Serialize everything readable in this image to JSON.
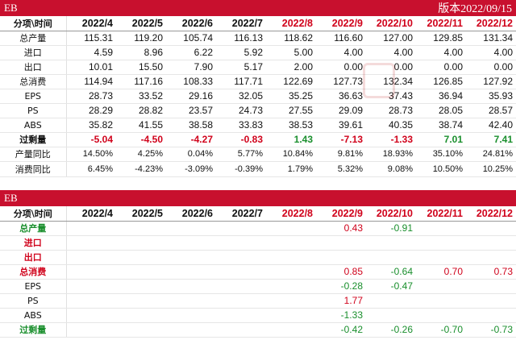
{
  "top_banner": {
    "product": "EB",
    "version": "版本2022/09/15"
  },
  "bottom_banner": {
    "product": "EB"
  },
  "header": {
    "label": "分项\\时间",
    "months": [
      "2022/4",
      "2022/5",
      "2022/6",
      "2022/7",
      "2022/8",
      "2022/9",
      "2022/10",
      "2022/11",
      "2022/12"
    ]
  },
  "top_rows": [
    {
      "label": "总产量",
      "values": [
        "115.31",
        "119.20",
        "105.74",
        "116.13",
        "118.62",
        "116.60",
        "127.00",
        "129.85",
        "131.34"
      ]
    },
    {
      "label": "进口",
      "values": [
        "4.59",
        "8.96",
        "6.22",
        "5.92",
        "5.00",
        "4.00",
        "4.00",
        "4.00",
        "4.00"
      ]
    },
    {
      "label": "出口",
      "values": [
        "10.01",
        "15.50",
        "7.90",
        "5.17",
        "2.00",
        "0.00",
        "0.00",
        "0.00",
        "0.00"
      ]
    },
    {
      "label": "总消费",
      "values": [
        "114.94",
        "117.16",
        "108.33",
        "117.71",
        "122.69",
        "127.73",
        "132.34",
        "126.85",
        "127.92"
      ]
    },
    {
      "label": "EPS",
      "values": [
        "28.73",
        "33.52",
        "29.16",
        "32.05",
        "35.25",
        "36.63",
        "37.43",
        "36.94",
        "35.93"
      ]
    },
    {
      "label": "PS",
      "values": [
        "28.29",
        "28.82",
        "23.57",
        "24.73",
        "27.55",
        "29.09",
        "28.73",
        "28.05",
        "28.57"
      ]
    },
    {
      "label": "ABS",
      "values": [
        "35.82",
        "41.55",
        "38.58",
        "33.83",
        "38.53",
        "39.61",
        "40.35",
        "38.74",
        "42.40"
      ]
    },
    {
      "label": "过剩量",
      "values": [
        "-5.04",
        "-4.50",
        "-4.27",
        "-0.83",
        "1.43",
        "-7.13",
        "-1.33",
        "7.01",
        "7.41"
      ]
    },
    {
      "label": "产量同比",
      "values": [
        "14.50%",
        "4.25%",
        "0.04%",
        "5.77%",
        "10.84%",
        "9.81%",
        "18.93%",
        "35.10%",
        "24.81%"
      ]
    },
    {
      "label": "消费同比",
      "values": [
        "6.45%",
        "-4.23%",
        "-3.09%",
        "-0.39%",
        "1.79%",
        "5.32%",
        "9.08%",
        "10.50%",
        "10.25%"
      ]
    }
  ],
  "bottom_rows": [
    {
      "label": "总产量",
      "values": [
        "",
        "",
        "",
        "",
        "",
        "0.43",
        "-0.91",
        "",
        ""
      ]
    },
    {
      "label": "进口",
      "values": [
        "",
        "",
        "",
        "",
        "",
        "",
        "",
        "",
        ""
      ]
    },
    {
      "label": "出口",
      "values": [
        "",
        "",
        "",
        "",
        "",
        "",
        "",
        "",
        ""
      ]
    },
    {
      "label": "总消费",
      "values": [
        "",
        "",
        "",
        "",
        "",
        "0.85",
        "-0.64",
        "0.70",
        "0.73"
      ]
    },
    {
      "label": "EPS",
      "values": [
        "",
        "",
        "",
        "",
        "",
        "-0.28",
        "-0.47",
        "",
        ""
      ]
    },
    {
      "label": "PS",
      "values": [
        "",
        "",
        "",
        "",
        "",
        "1.77",
        "",
        "",
        ""
      ]
    },
    {
      "label": "ABS",
      "values": [
        "",
        "",
        "",
        "",
        "",
        "-1.33",
        "",
        "",
        ""
      ]
    },
    {
      "label": "过剩量",
      "values": [
        "",
        "",
        "",
        "",
        "",
        "-0.42",
        "-0.26",
        "-0.70",
        "-0.73"
      ]
    }
  ],
  "colors": {
    "banner_red": "#c8102e",
    "highlight_red": "#d0021b",
    "green": "#1a8f2d"
  }
}
